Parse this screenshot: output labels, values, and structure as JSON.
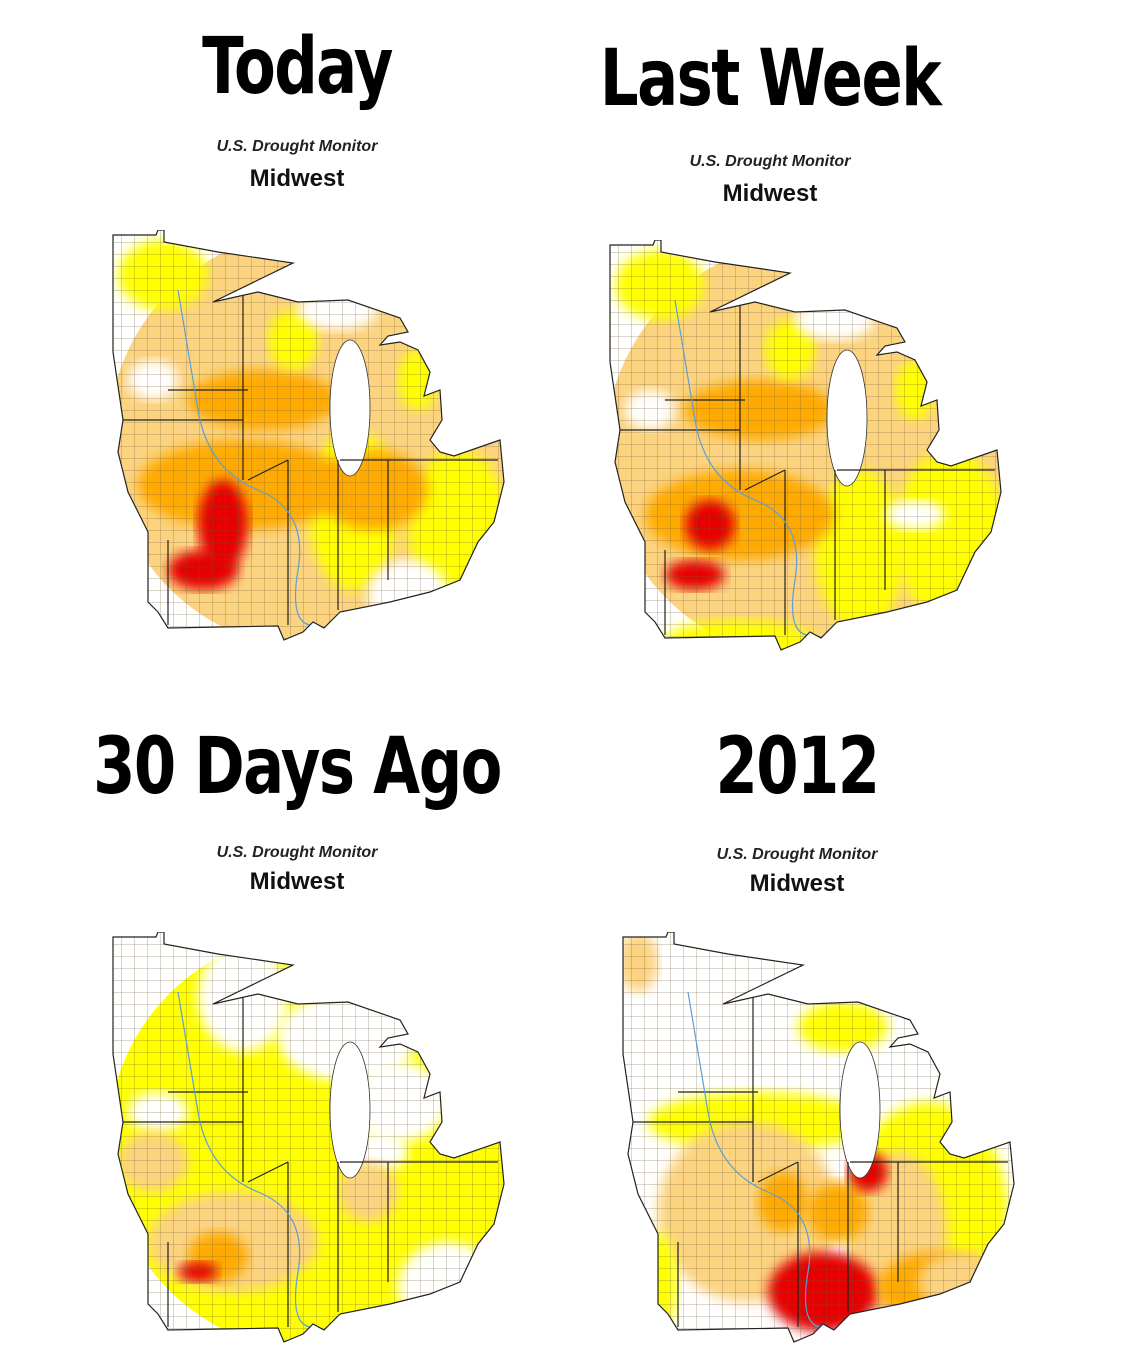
{
  "panels": [
    {
      "title": "Today",
      "source": "U.S. Drought Monitor",
      "region": "Midwest"
    },
    {
      "title": "Last Week",
      "source": "U.S. Drought Monitor",
      "region": "Midwest"
    },
    {
      "title": "30 Days Ago",
      "source": "U.S. Drought Monitor",
      "region": "Midwest"
    },
    {
      "title": "2012",
      "source": "U.S. Drought Monitor",
      "region": "Midwest"
    }
  ]
}
